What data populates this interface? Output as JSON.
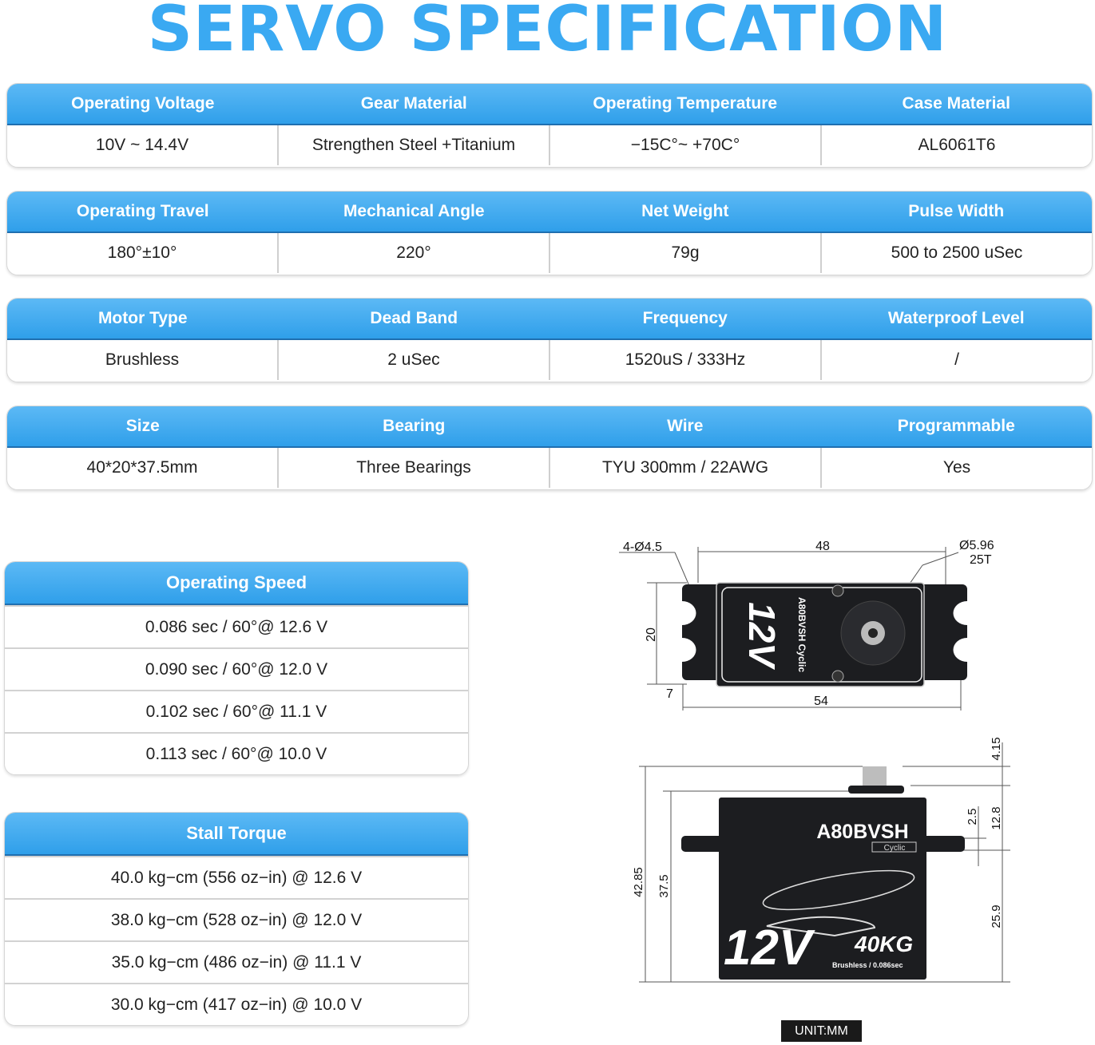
{
  "title": "SERVO SPECIFICATION",
  "spec_tables": [
    {
      "headers": [
        "Operating Voltage",
        "Gear Material",
        "Operating Temperature",
        "Case Material"
      ],
      "values": [
        "10V ~ 14.4V",
        "Strengthen Steel +Titanium",
        "−15C°~ +70C°",
        "AL6061T6"
      ]
    },
    {
      "headers": [
        "Operating Travel",
        "Mechanical Angle",
        "Net Weight",
        "Pulse Width"
      ],
      "values": [
        "180°±10°",
        "220°",
        "79g",
        "500 to 2500 uSec"
      ]
    },
    {
      "headers": [
        "Motor Type",
        "Dead Band",
        "Frequency",
        "Waterproof Level"
      ],
      "values": [
        "Brushless",
        "2 uSec",
        "1520uS / 333Hz",
        "/"
      ]
    },
    {
      "headers": [
        "Size",
        "Bearing",
        "Wire",
        "Programmable"
      ],
      "values": [
        "40*20*37.5mm",
        "Three Bearings",
        "TYU 300mm / 22AWG",
        "Yes"
      ]
    }
  ],
  "operating_speed": {
    "title": "Operating Speed",
    "rows": [
      "0.086 sec / 60°@ 12.6 V",
      "0.090 sec / 60°@ 12.0 V",
      "0.102 sec / 60°@ 11.1 V",
      "0.113 sec / 60°@ 10.0 V"
    ]
  },
  "stall_torque": {
    "title": "Stall Torque",
    "rows": [
      "40.0 kg−cm (556 oz−in) @ 12.6 V",
      "38.0 kg−cm (528 oz−in) @ 12.0 V",
      "35.0 kg−cm (486 oz−in) @ 11.1 V",
      "30.0 kg−cm (417 oz−in) @ 10.0 V"
    ]
  },
  "top_view": {
    "holes": "4-Ø4.5",
    "hole_spacing": "48",
    "spline_diameter": "Ø5.96",
    "spline_teeth": "25T",
    "width": "20",
    "tab": "7",
    "length": "54",
    "label": "A80BVSH Cyclic",
    "logo": "12V"
  },
  "side_view": {
    "total_height": "42.85",
    "case_height": "37.5",
    "spline_height": "4.15",
    "tab_thickness": "2.5",
    "top_to_tab": "12.8",
    "tab_to_bottom": "25.9",
    "model": "A80BVSH",
    "badge": "Cyclic",
    "logo": "12V",
    "torque": "40KG",
    "subtitle": "Brushless / 0.086sec"
  },
  "unit_label": "UNIT:MM",
  "colors": {
    "accent": "#3aa9f2",
    "header_border": "#1f6fb0",
    "servo_body": "#1c1d20"
  }
}
